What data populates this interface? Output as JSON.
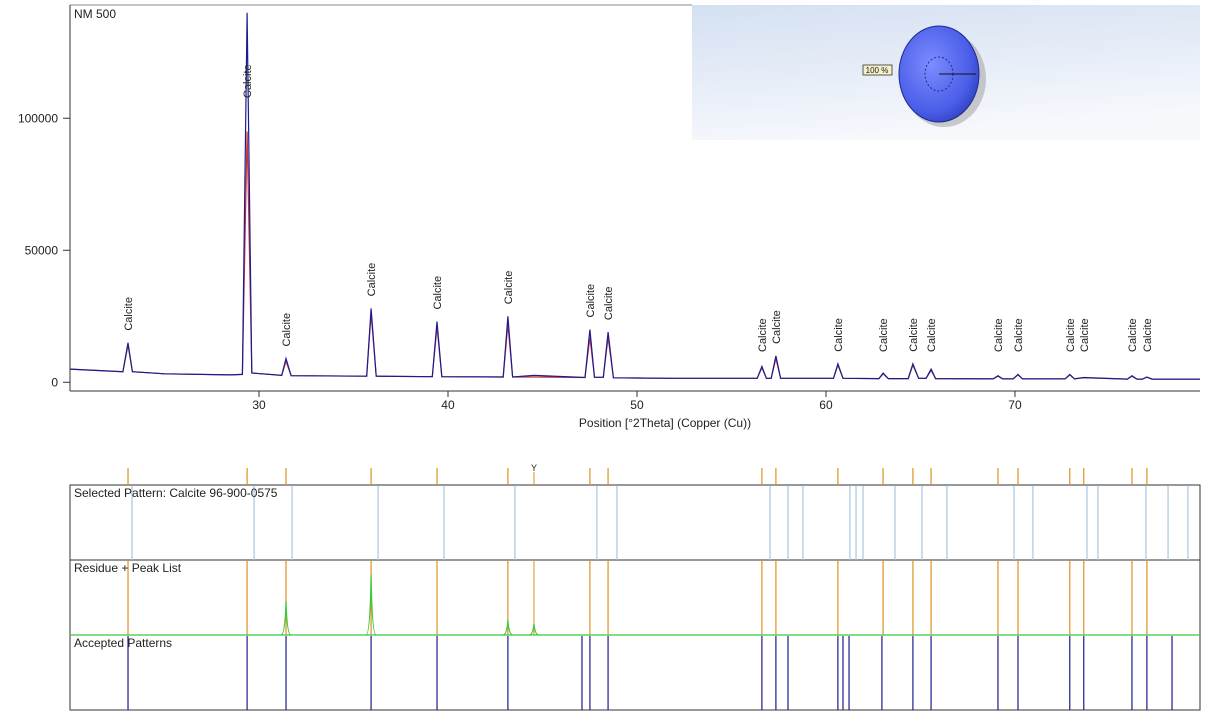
{
  "chart_data": [
    {
      "type": "line",
      "title": "NM 500",
      "x_label": "Position [°2Theta] (Copper (Cu))",
      "xlim": [
        20,
        79.79
      ],
      "ylim": [
        -3300,
        142900
      ],
      "xticks": [
        30,
        40,
        50,
        60,
        70
      ],
      "yticks": [
        0,
        50000,
        100000
      ],
      "x": [
        20,
        22.8,
        23.07,
        23.3,
        25,
        28.5,
        29.12,
        29.37,
        29.62,
        31.2,
        31.43,
        31.7,
        35.7,
        35.93,
        36.2,
        39.17,
        39.42,
        39.67,
        42.92,
        43.17,
        43.42,
        44.55,
        47.25,
        47.51,
        47.75,
        48.22,
        48.47,
        48.75,
        52,
        56.36,
        56.61,
        56.85,
        57.1,
        57.35,
        57.6,
        60.4,
        60.63,
        60.9,
        62.8,
        63.02,
        63.3,
        64.35,
        64.6,
        64.9,
        65.3,
        65.56,
        65.8,
        68.85,
        69.1,
        69.35,
        69.9,
        70.16,
        70.4,
        72.65,
        72.9,
        73.15,
        73.64,
        75.95,
        76.19,
        76.45,
        76.75,
        76.98,
        77.25,
        79.79
      ],
      "series": [
        {
          "color": "#1c1c8e",
          "values": [
            5000,
            4000,
            15000,
            4000,
            3200,
            2800,
            3000,
            140000,
            3500,
            2600,
            9000,
            2500,
            2300,
            28000,
            2300,
            2100,
            23000,
            2100,
            2000,
            25000,
            2000,
            2600,
            1800,
            20000,
            1900,
            1900,
            19000,
            1700,
            1500,
            1500,
            6000,
            1500,
            1500,
            10000,
            1500,
            1500,
            7000,
            1500,
            1400,
            3500,
            1400,
            1400,
            7000,
            1500,
            1500,
            5000,
            1400,
            1300,
            2500,
            1300,
            1300,
            3000,
            1300,
            1300,
            3000,
            1300,
            1800,
            1200,
            2500,
            1200,
            1200,
            2000,
            1200,
            1200
          ]
        },
        {
          "color": "#c8323c",
          "values": [
            5000,
            4000,
            14000,
            4000,
            3200,
            2800,
            3000,
            95000,
            3500,
            2600,
            8000,
            2500,
            2300,
            26000,
            2300,
            2100,
            21000,
            2100,
            2000,
            22000,
            2000,
            2000,
            1800,
            17000,
            1900,
            1900,
            17000,
            1700,
            1500,
            1500,
            5500,
            1500,
            1500,
            9000,
            1500,
            1500,
            6500,
            1500,
            1400,
            3200,
            1400,
            1400,
            6500,
            1500,
            1500,
            4500,
            1400,
            1300,
            2300,
            1300,
            1300,
            2800,
            1300,
            1300,
            2800,
            1300,
            1700,
            1200,
            2300,
            1200,
            1200,
            1900,
            1200,
            1200
          ]
        }
      ],
      "peaks": {
        "positions": [
          23.07,
          29.37,
          31.43,
          35.93,
          39.42,
          43.17,
          47.51,
          48.47,
          56.61,
          57.35,
          60.63,
          63.02,
          64.6,
          65.56,
          69.1,
          70.16,
          72.9,
          73.64,
          76.19,
          76.98
        ],
        "heights": [
          15000,
          140000,
          9000,
          28000,
          23000,
          25000,
          20000,
          19000,
          6000,
          10000,
          7000,
          3500,
          7000,
          5000,
          2500,
          3000,
          3000,
          2500,
          2500,
          2000
        ],
        "labels": [
          "Calcite",
          "Calcite",
          "Calcite",
          "Calcite",
          "Calcite",
          "Calcite",
          "Calcite",
          "Calcite",
          "Calcite",
          "Calcite",
          "Calcite",
          "Calcite",
          "Calcite",
          "Calcite",
          "Calcite",
          "Calcite",
          "Calcite",
          "Calcite",
          "Calcite",
          "Calcite"
        ]
      },
      "inset_label": "100 %"
    },
    {
      "type": "stick",
      "xlim": [
        20,
        79.79
      ],
      "marker": {
        "x": 44.55,
        "label": "Y"
      },
      "panels": [
        {
          "label": "Selected Pattern: Calcite  96-900-0575",
          "color": "#a9c6de",
          "positions": [
            23.28,
            29.74,
            31.75,
            36.3,
            39.79,
            43.54,
            47.88,
            48.94,
            57.04,
            57.99,
            58.78,
            61.27,
            61.59,
            61.96,
            63.65,
            65.08,
            66.4,
            69.95,
            70.95,
            73.81,
            74.39,
            76.93,
            78.1,
            79.15
          ]
        },
        {
          "label": "Residue + Peak List",
          "color": "#e0901e",
          "positions": [
            23.07,
            29.37,
            31.43,
            35.93,
            39.42,
            43.17,
            47.51,
            48.47,
            56.61,
            57.35,
            60.63,
            63.02,
            64.6,
            65.56,
            69.1,
            70.16,
            72.9,
            73.64,
            76.19,
            76.98
          ],
          "residue": {
            "color": "#3cc83c",
            "ylim": [
              0,
              10000
            ],
            "x": [
              31.43,
              35.93,
              43.17,
              44.55
            ],
            "values": [
              4500,
              8000,
              2000,
              1500
            ]
          }
        },
        {
          "label": "Accepted Patterns",
          "color": "#1c1c8e",
          "positions": [
            23.07,
            29.37,
            31.43,
            35.93,
            39.42,
            43.17,
            47.09,
            47.51,
            48.47,
            56.61,
            57.35,
            57.99,
            60.63,
            60.9,
            61.22,
            62.96,
            64.6,
            65.56,
            69.1,
            70.16,
            72.9,
            73.64,
            76.19,
            76.98,
            78.31
          ]
        }
      ]
    }
  ]
}
